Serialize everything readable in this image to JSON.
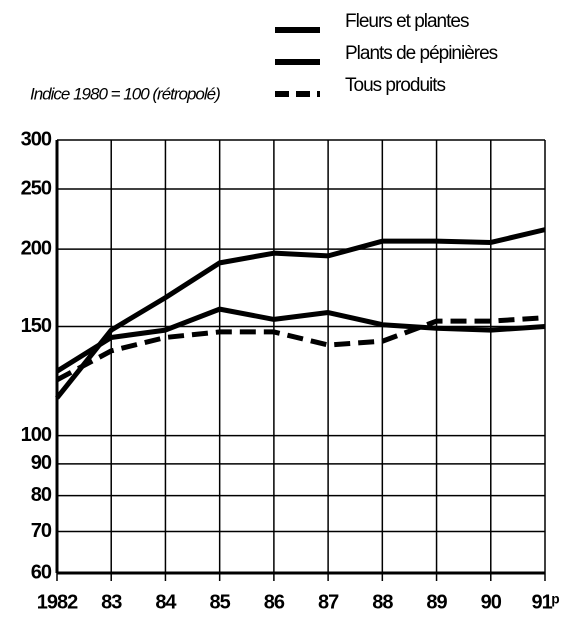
{
  "chart_data": {
    "type": "line",
    "y_label": "Indice 1980 = 100 (rétropolé)",
    "categories": [
      "1982",
      "83",
      "84",
      "85",
      "86",
      "87",
      "88",
      "89",
      "90",
      "91ᵖ"
    ],
    "series": [
      {
        "name": "Fleurs et plantes",
        "color": "#000000",
        "dash": "solid",
        "values": [
          115,
          148,
          167,
          190,
          197,
          195,
          206,
          206,
          205,
          215
        ]
      },
      {
        "name": "Plants de pépinières",
        "color": "#000000",
        "dash": "solid",
        "values": [
          127,
          144,
          148,
          160,
          154,
          158,
          151,
          149,
          148,
          150
        ]
      },
      {
        "name": "Tous produits",
        "color": "#000000",
        "dash": "dashed",
        "values": [
          123,
          137,
          144,
          147,
          147,
          140,
          142,
          153,
          153,
          155
        ]
      }
    ],
    "ylim": [
      60,
      300
    ],
    "yticks": [
      60,
      70,
      80,
      90,
      100,
      150,
      200,
      250,
      300
    ],
    "log_y": true,
    "grid": true
  }
}
